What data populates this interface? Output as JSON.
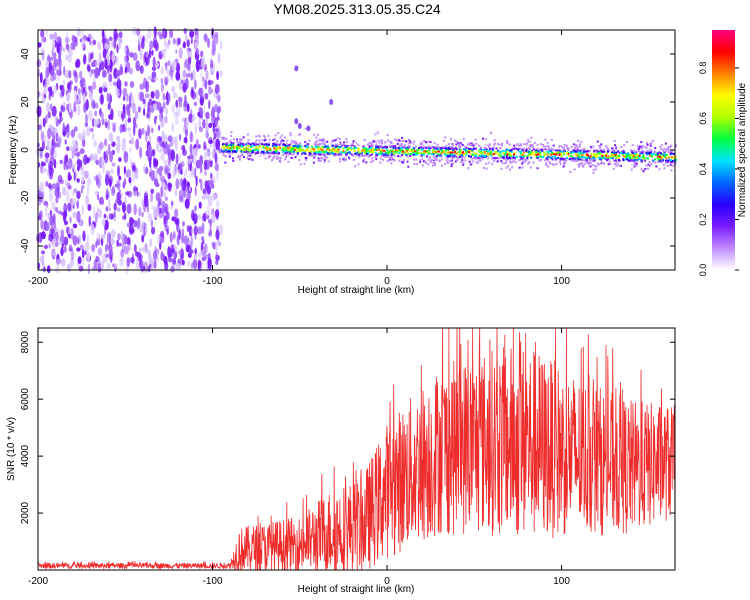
{
  "title": "YM08.2025.313.05.35.C24",
  "chart_data": [
    {
      "type": "heatmap",
      "xlabel": "Height of straight line (km)",
      "ylabel": "Frequency (Hz)",
      "xlim": [
        -200,
        165
      ],
      "ylim": [
        -50,
        50
      ],
      "x_ticks": [
        -200,
        -100,
        0,
        100
      ],
      "x_tick_labels": [
        "-200",
        "-100",
        "0",
        "100"
      ],
      "y_ticks": [
        40,
        20,
        0,
        -20,
        -40
      ],
      "y_tick_labels": [
        "40",
        "20",
        "0",
        "-20",
        "-40"
      ],
      "colorbar": {
        "label": "Normalized spectral amplitude",
        "range": [
          0,
          0.95
        ],
        "ticks": [
          0.0,
          0.2,
          0.4,
          0.6,
          0.8
        ],
        "tick_labels": [
          "0.0",
          "0.2",
          "0.4",
          "0.6",
          "0.8"
        ],
        "colormap": [
          "#ffffff",
          "#c08cff",
          "#7a1cff",
          "#2a00ff",
          "#0066ff",
          "#00e5ff",
          "#00ff40",
          "#b0ff00",
          "#ffff00",
          "#ff8000",
          "#ff0000",
          "#ff0080"
        ]
      },
      "regions": [
        {
          "name": "noise",
          "x_range": [
            -200,
            -95
          ],
          "freq_range": [
            -50,
            50
          ],
          "amplitude": 0.05
        },
        {
          "name": "signal-band",
          "x_range": [
            -95,
            165
          ],
          "freq_center_start": 1,
          "freq_center_end": -3,
          "bandwidth": 4,
          "peak_amplitude": 0.9
        }
      ],
      "grid": false
    },
    {
      "type": "line",
      "xlabel": "Height of straight line (km)",
      "ylabel": "SNR (10 * v/v)",
      "xlim": [
        -200,
        165
      ],
      "ylim": [
        0,
        8500
      ],
      "x_ticks": [
        -200,
        -100,
        0,
        100
      ],
      "x_tick_labels": [
        "-200",
        "-100",
        "0",
        "100"
      ],
      "y_ticks": [
        2000,
        4000,
        6000,
        8000
      ],
      "y_tick_labels": [
        "2000",
        "4000",
        "6000",
        "8000"
      ],
      "series_color": "#ee2c2c",
      "envelope": [
        {
          "x": -200,
          "mean": 150,
          "spread": 100
        },
        {
          "x": -90,
          "mean": 150,
          "spread": 100
        },
        {
          "x": -85,
          "mean": 700,
          "spread": 800
        },
        {
          "x": -50,
          "mean": 900,
          "spread": 1000
        },
        {
          "x": -30,
          "mean": 1400,
          "spread": 1600
        },
        {
          "x": -15,
          "mean": 1500,
          "spread": 1700
        },
        {
          "x": 0,
          "mean": 2800,
          "spread": 2400
        },
        {
          "x": 30,
          "mean": 4200,
          "spread": 3000
        },
        {
          "x": 60,
          "mean": 4500,
          "spread": 3300
        },
        {
          "x": 80,
          "mean": 4500,
          "spread": 3500
        },
        {
          "x": 110,
          "mean": 4000,
          "spread": 2800
        },
        {
          "x": 140,
          "mean": 3600,
          "spread": 2400
        },
        {
          "x": 165,
          "mean": 3800,
          "spread": 2000
        }
      ],
      "grid": false
    }
  ]
}
